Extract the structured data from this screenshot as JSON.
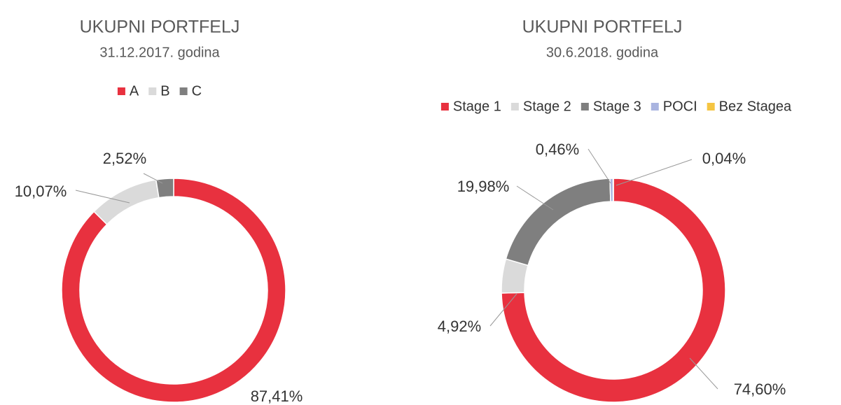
{
  "chart_data": [
    {
      "type": "donut",
      "title": "UKUPNI PORTFELJ",
      "subtitle": "31.12.2017. godina",
      "categories": [
        "A",
        "B",
        "C"
      ],
      "values": [
        87.41,
        10.07,
        2.52
      ],
      "value_labels": [
        "87,41%",
        "10,07%",
        "2,52%"
      ],
      "colors": [
        "#e8313f",
        "#dadada",
        "#7f7f7f"
      ]
    },
    {
      "type": "donut",
      "title": "UKUPNI PORTFELJ",
      "subtitle": "30.6.2018. godina",
      "categories": [
        "Stage 1",
        "Stage 2",
        "Stage 3",
        "POCI",
        "Bez Stagea"
      ],
      "values": [
        74.6,
        4.92,
        19.98,
        0.46,
        0.04
      ],
      "value_labels": [
        "74,60%",
        "4,92%",
        "19,98%",
        "0,46%",
        "0,04%"
      ],
      "colors": [
        "#e8313f",
        "#dadada",
        "#7f7f7f",
        "#a9b4e0",
        "#f5c542"
      ]
    }
  ]
}
